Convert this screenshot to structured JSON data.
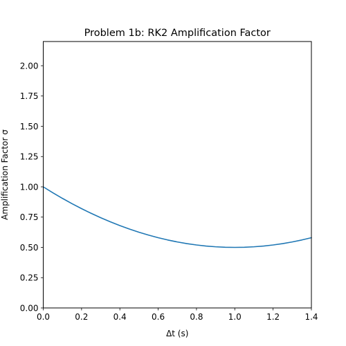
{
  "chart_data": {
    "type": "line",
    "title": "Problem 1b: RK2 Amplification Factor",
    "xlabel": "Δt (s)",
    "ylabel": "Amplification Factor σ",
    "xlim": [
      0.0,
      1.4
    ],
    "ylim": [
      0.0,
      2.2
    ],
    "xticks": [
      0.0,
      0.2,
      0.4,
      0.6,
      0.8,
      1.0,
      1.2,
      1.4
    ],
    "yticks": [
      0.0,
      0.25,
      0.5,
      0.75,
      1.0,
      1.25,
      1.5,
      1.75,
      2.0
    ],
    "xtick_labels": [
      "0.0",
      "0.2",
      "0.4",
      "0.6",
      "0.8",
      "1.0",
      "1.2",
      "1.4"
    ],
    "ytick_labels": [
      "0.00",
      "0.25",
      "0.50",
      "0.75",
      "1.00",
      "1.25",
      "1.50",
      "1.75",
      "2.00"
    ],
    "grid": false,
    "series": [
      {
        "color": "#1f77b4",
        "x": [
          0.0,
          0.05,
          0.1,
          0.15,
          0.2,
          0.25,
          0.3,
          0.35,
          0.4,
          0.45,
          0.5,
          0.55,
          0.6,
          0.65,
          0.7,
          0.75,
          0.8,
          0.85,
          0.9,
          0.95,
          1.0,
          1.05,
          1.1,
          1.15,
          1.2,
          1.25,
          1.3,
          1.35,
          1.4
        ],
        "y": [
          1.0,
          0.95125,
          0.905,
          0.86125,
          0.82,
          0.78125,
          0.745,
          0.71125,
          0.68,
          0.65125,
          0.625,
          0.60125,
          0.58,
          0.56125,
          0.545,
          0.53125,
          0.52,
          0.51125,
          0.505,
          0.50125,
          0.5,
          0.50125,
          0.505,
          0.51125,
          0.52,
          0.53125,
          0.545,
          0.56125,
          0.58
        ]
      }
    ]
  }
}
